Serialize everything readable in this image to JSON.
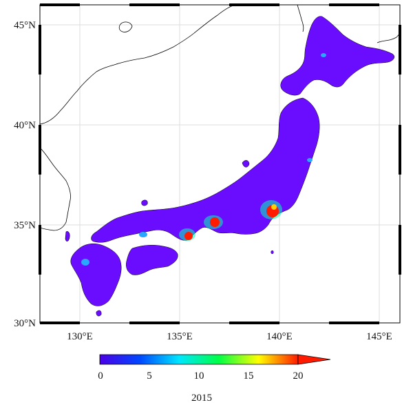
{
  "map": {
    "lon_range": [
      128,
      146
    ],
    "lat_range": [
      30,
      46
    ],
    "lon_ticks": [
      "130°E",
      "135°E",
      "140°E",
      "145°E"
    ],
    "lat_ticks": [
      "45°N",
      "40°N",
      "35°N",
      "30°N"
    ],
    "grid": true
  },
  "colorbar": {
    "ticks": [
      "0",
      "5",
      "10",
      "15",
      "20"
    ],
    "range": [
      0,
      20
    ],
    "extend": "max",
    "colors": [
      "#4b00e6",
      "#0040ff",
      "#00ffff",
      "#00ff40",
      "#ffff00",
      "#ff0000"
    ]
  },
  "caption": {
    "year": "2015"
  },
  "colors": {
    "land_base": "#6a0dff",
    "hotspot": "#ff1a00",
    "coast": "#000000",
    "grid": "#d8d8d8"
  }
}
